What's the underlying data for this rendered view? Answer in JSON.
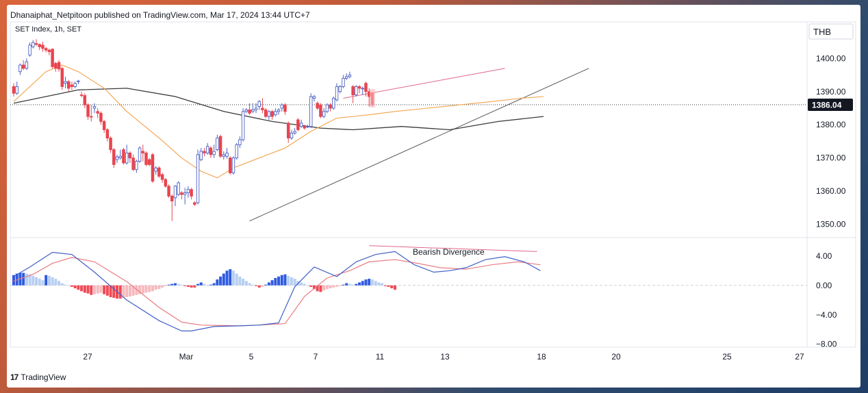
{
  "header": {
    "published": "Dhanaiphat_Netpitoon published on TradingView.com, Mar 17, 2024 13:44 UTC+7"
  },
  "footer": {
    "brand": "TradingView",
    "logo_icon": "tradingview-logo-icon"
  },
  "colors": {
    "up": "#4d62c4",
    "down": "#e8454f",
    "ema_fast": "#f2a24a",
    "ema_slow": "#3a3a3a",
    "macd": "#3f5fc7",
    "signal": "#e97b80",
    "hist_pos_strong": "#2f5be0",
    "hist_pos_weak": "#b7cff2",
    "hist_neg_strong": "#ef4a55",
    "hist_neg_weak": "#f6b9bd",
    "price_label_bg": "#131722"
  },
  "chart_data": [
    {
      "type": "candlestick",
      "title": "SET Index, 1h, SET",
      "currency": "THB",
      "last_price": "1386.04",
      "ylim": [
        1346,
        1411
      ],
      "y_ticks": [
        "1350.00",
        "1360.00",
        "1370.00",
        "1380.00",
        "1390.00",
        "1400.00"
      ],
      "x_ticks": [
        "27",
        "Mar",
        "5",
        "7",
        "11",
        "13",
        "18",
        "20",
        "25",
        "27"
      ],
      "candles": [
        [
          1391.5,
          1389.5,
          1392.5,
          1388.5
        ],
        [
          1389.5,
          1391.5,
          1393.0,
          1389.0
        ],
        [
          1396.0,
          1398.0,
          1398.5,
          1395.0
        ],
        [
          1398.0,
          1397.0,
          1399.5,
          1396.5
        ],
        [
          1397.0,
          1399.0,
          1400.0,
          1396.5
        ],
        [
          1401.0,
          1404.0,
          1404.8,
          1400.5
        ],
        [
          1403.5,
          1404.8,
          1405.5,
          1403.0
        ],
        [
          1404.5,
          1404.2,
          1405.8,
          1403.8
        ],
        [
          1404.2,
          1403.5,
          1404.5,
          1402.5
        ],
        [
          1404.0,
          1403.0,
          1405.0,
          1402.0
        ],
        [
          1403.0,
          1402.5,
          1403.5,
          1401.8
        ],
        [
          1402.5,
          1402.0,
          1403.0,
          1401.0
        ],
        [
          1402.8,
          1397.5,
          1403.0,
          1397.0
        ],
        [
          1398.5,
          1397.0,
          1399.0,
          1396.0
        ],
        [
          1398.8,
          1396.8,
          1399.5,
          1396.0
        ],
        [
          1397.0,
          1391.5,
          1397.5,
          1390.5
        ],
        [
          1392.5,
          1393.0,
          1394.5,
          1391.0
        ],
        [
          1393.0,
          1391.0,
          1393.5,
          1390.0
        ],
        [
          1392.0,
          1391.5,
          1393.0,
          1390.5
        ],
        [
          1391.5,
          1392.5,
          1393.0,
          1391.0
        ],
        [
          1393.0,
          1393.2,
          1393.5,
          1392.2
        ],
        [
          1389.0,
          1388.8,
          1390.0,
          1388.3
        ],
        [
          1388.8,
          1386.0,
          1389.5,
          1385.0
        ],
        [
          1386.0,
          1382.5,
          1386.5,
          1381.5
        ],
        [
          1382.5,
          1382.3,
          1386.0,
          1381.0
        ],
        [
          1385.0,
          1385.5,
          1386.5,
          1383.5
        ],
        [
          1384.0,
          1383.5,
          1385.0,
          1382.0
        ],
        [
          1383.5,
          1381.0,
          1384.0,
          1380.0
        ],
        [
          1381.0,
          1378.5,
          1381.5,
          1377.5
        ],
        [
          1378.5,
          1376.0,
          1379.0,
          1375.0
        ],
        [
          1376.0,
          1372.5,
          1376.5,
          1371.5
        ],
        [
          1372.5,
          1368.0,
          1373.0,
          1367.0
        ],
        [
          1369.5,
          1370.3,
          1371.0,
          1368.5
        ],
        [
          1370.0,
          1370.5,
          1372.5,
          1369.5
        ],
        [
          1372.5,
          1368.5,
          1373.0,
          1368.0
        ],
        [
          1368.5,
          1371.5,
          1374.0,
          1368.0
        ],
        [
          1371.5,
          1370.0,
          1372.0,
          1368.5
        ],
        [
          1370.0,
          1366.5,
          1371.0,
          1366.0
        ],
        [
          1366.5,
          1369.0,
          1369.5,
          1365.5
        ],
        [
          1369.0,
          1373.0,
          1373.5,
          1368.5
        ],
        [
          1372.0,
          1371.5,
          1374.0,
          1369.0
        ],
        [
          1371.5,
          1368.0,
          1372.0,
          1367.5
        ],
        [
          1369.5,
          1368.0,
          1370.0,
          1367.5
        ],
        [
          1371.0,
          1363.0,
          1371.5,
          1362.5
        ],
        [
          1366.0,
          1367.0,
          1367.5,
          1365.0
        ],
        [
          1367.0,
          1364.5,
          1367.5,
          1364.0
        ],
        [
          1365.0,
          1363.5,
          1365.5,
          1362.5
        ],
        [
          1363.5,
          1361.5,
          1364.0,
          1361.0
        ],
        [
          1361.5,
          1358.5,
          1362.0,
          1358.0
        ],
        [
          1358.5,
          1357.0,
          1359.0,
          1351.0
        ],
        [
          1358.0,
          1361.5,
          1361.8,
          1355.5
        ],
        [
          1359.0,
          1362.5,
          1363.0,
          1358.5
        ],
        [
          1359.5,
          1359.0,
          1360.0,
          1357.5
        ],
        [
          1359.0,
          1359.5,
          1361.0,
          1356.0
        ],
        [
          1359.5,
          1360.5,
          1361.5,
          1358.0
        ],
        [
          1360.5,
          1358.5,
          1361.0,
          1357.5
        ],
        [
          1356.5,
          1356.0,
          1357.0,
          1355.5
        ],
        [
          1356.5,
          1371.0,
          1372.5,
          1356.0
        ],
        [
          1369.5,
          1372.0,
          1373.0,
          1369.0
        ],
        [
          1372.0,
          1371.5,
          1373.0,
          1370.5
        ],
        [
          1371.5,
          1373.5,
          1374.5,
          1371.0
        ],
        [
          1373.0,
          1371.0,
          1373.5,
          1370.0
        ],
        [
          1371.0,
          1372.0,
          1374.0,
          1370.0
        ],
        [
          1372.5,
          1376.0,
          1377.0,
          1372.0
        ],
        [
          1376.5,
          1370.5,
          1377.0,
          1370.0
        ],
        [
          1370.5,
          1371.0,
          1372.0,
          1369.5
        ],
        [
          1370.5,
          1371.5,
          1373.0,
          1369.8
        ],
        [
          1370.0,
          1365.5,
          1370.5,
          1365.0
        ],
        [
          1365.5,
          1370.0,
          1370.5,
          1365.0
        ],
        [
          1370.0,
          1374.0,
          1374.5,
          1369.5
        ],
        [
          1374.0,
          1375.5,
          1376.5,
          1373.0
        ],
        [
          1375.5,
          1384.0,
          1385.0,
          1375.0
        ],
        [
          1384.0,
          1384.5,
          1385.0,
          1383.5
        ],
        [
          1384.5,
          1383.5,
          1386.5,
          1383.0
        ],
        [
          1384.0,
          1384.5,
          1386.5,
          1383.5
        ],
        [
          1384.5,
          1385.0,
          1386.5,
          1383.5
        ],
        [
          1385.5,
          1387.0,
          1387.5,
          1384.5
        ],
        [
          1385.0,
          1384.5,
          1388.0,
          1383.5
        ],
        [
          1384.5,
          1382.5,
          1385.0,
          1382.0
        ],
        [
          1382.5,
          1384.0,
          1384.5,
          1381.5
        ],
        [
          1384.0,
          1382.5,
          1384.5,
          1381.5
        ],
        [
          1383.0,
          1384.0,
          1385.0,
          1382.5
        ],
        [
          1384.0,
          1384.5,
          1385.0,
          1383.0
        ],
        [
          1385.0,
          1386.0,
          1386.5,
          1384.0
        ],
        [
          1386.0,
          1384.0,
          1386.5,
          1383.0
        ],
        [
          1380.5,
          1376.0,
          1381.0,
          1374.5
        ],
        [
          1376.0,
          1377.5,
          1378.5,
          1375.5
        ],
        [
          1377.5,
          1378.0,
          1379.0,
          1377.0
        ],
        [
          1381.5,
          1378.5,
          1382.0,
          1378.0
        ],
        [
          1379.5,
          1380.5,
          1381.5,
          1379.0
        ],
        [
          1379.5,
          1379.0,
          1380.0,
          1378.5
        ],
        [
          1379.5,
          1379.5,
          1380.0,
          1379.0
        ],
        [
          1379.5,
          1388.5,
          1389.5,
          1379.0
        ],
        [
          1388.0,
          1388.5,
          1389.0,
          1387.0
        ],
        [
          1386.5,
          1385.0,
          1387.0,
          1384.5
        ],
        [
          1386.0,
          1382.5,
          1386.5,
          1382.0
        ],
        [
          1382.5,
          1384.0,
          1385.0,
          1382.0
        ],
        [
          1384.0,
          1386.0,
          1386.5,
          1383.5
        ],
        [
          1386.0,
          1385.0,
          1386.5,
          1384.0
        ],
        [
          1385.0,
          1388.0,
          1388.5,
          1384.5
        ],
        [
          1387.5,
          1391.5,
          1392.5,
          1387.0
        ],
        [
          1390.0,
          1391.5,
          1392.0,
          1389.5
        ],
        [
          1391.5,
          1394.0,
          1395.0,
          1391.0
        ],
        [
          1394.0,
          1394.5,
          1395.5,
          1393.5
        ],
        [
          1394.5,
          1395.0,
          1396.0,
          1394.0
        ],
        [
          1391.5,
          1389.0,
          1392.0,
          1386.5
        ],
        [
          1389.0,
          1391.5,
          1392.0,
          1388.5
        ],
        [
          1391.5,
          1391.0,
          1392.0,
          1389.5
        ],
        [
          1391.0,
          1391.0,
          1391.5,
          1389.0
        ],
        [
          1392.5,
          1390.0,
          1393.0,
          1388.5
        ],
        [
          1390.0,
          1388.5,
          1391.0,
          1385.5
        ],
        [
          1389.5,
          1386.0,
          1390.0,
          1385.5
        ]
      ],
      "ema_fast": [
        [
          0,
          1387.0
        ],
        [
          10,
          1396.0
        ],
        [
          15,
          1398.0
        ],
        [
          20,
          1396.0
        ],
        [
          28,
          1391.0
        ],
        [
          35,
          1384.0
        ],
        [
          45,
          1376.0
        ],
        [
          52,
          1370.0
        ],
        [
          58,
          1366.0
        ],
        [
          63,
          1364.0
        ],
        [
          68,
          1367.0
        ],
        [
          76,
          1370.0
        ],
        [
          84,
          1373.0
        ],
        [
          92,
          1378.0
        ],
        [
          100,
          1382.0
        ],
        [
          110,
          1383.0
        ],
        [
          118,
          1384.0
        ],
        [
          128,
          1385.0
        ],
        [
          138,
          1386.0
        ],
        [
          148,
          1387.0
        ],
        [
          157,
          1388.0
        ],
        [
          164,
          1388.5
        ]
      ],
      "ema_slow": [
        [
          0,
          1386.5
        ],
        [
          20,
          1390.5
        ],
        [
          35,
          1391.0
        ],
        [
          50,
          1388.5
        ],
        [
          65,
          1384.0
        ],
        [
          80,
          1381.0
        ],
        [
          95,
          1379.0
        ],
        [
          105,
          1378.5
        ],
        [
          120,
          1379.5
        ],
        [
          135,
          1378.5
        ],
        [
          150,
          1381.0
        ],
        [
          164,
          1382.5
        ]
      ],
      "trendlines": [
        {
          "from": [
            73,
            1351.0
          ],
          "to": [
            178,
            1397.0
          ],
          "color": "#555555"
        },
        {
          "from": [
            102,
            1388.0
          ],
          "to": [
            152,
            1397.0
          ],
          "color": "#e06688"
        }
      ]
    },
    {
      "type": "macd",
      "ylim": [
        -8.4,
        6.5
      ],
      "y_ticks": [
        "4.00",
        "0.00",
        "−4.00",
        "−8.00"
      ],
      "annotation": "Bearish Divergence",
      "macd": [
        [
          0,
          1.2
        ],
        [
          5,
          2.5
        ],
        [
          12,
          4.5
        ],
        [
          18,
          4.2
        ],
        [
          25,
          1.8
        ],
        [
          35,
          -2.0
        ],
        [
          45,
          -4.8
        ],
        [
          52,
          -6.2
        ],
        [
          55,
          -6.2
        ],
        [
          62,
          -5.6
        ],
        [
          70,
          -5.5
        ],
        [
          76,
          -5.4
        ],
        [
          82,
          -5.1
        ],
        [
          87,
          -0.2
        ],
        [
          93,
          2.5
        ],
        [
          100,
          1.2
        ],
        [
          106,
          3.2
        ],
        [
          112,
          4.2
        ],
        [
          118,
          4.6
        ],
        [
          124,
          2.8
        ],
        [
          130,
          1.8
        ],
        [
          135,
          2.0
        ],
        [
          140,
          2.4
        ],
        [
          146,
          3.5
        ],
        [
          152,
          3.9
        ],
        [
          158,
          3.2
        ],
        [
          163,
          2.0
        ]
      ],
      "signal": [
        [
          0,
          0.6
        ],
        [
          6,
          1.5
        ],
        [
          12,
          3.0
        ],
        [
          18,
          3.8
        ],
        [
          25,
          3.2
        ],
        [
          35,
          0.5
        ],
        [
          45,
          -3.0
        ],
        [
          52,
          -5.0
        ],
        [
          58,
          -5.4
        ],
        [
          70,
          -5.5
        ],
        [
          76,
          -5.4
        ],
        [
          84,
          -5.2
        ],
        [
          90,
          -1.5
        ],
        [
          97,
          1.0
        ],
        [
          104,
          2.0
        ],
        [
          110,
          3.2
        ],
        [
          118,
          3.5
        ],
        [
          125,
          3.0
        ],
        [
          132,
          2.4
        ],
        [
          140,
          2.2
        ],
        [
          148,
          2.8
        ],
        [
          156,
          3.2
        ],
        [
          163,
          2.8
        ]
      ],
      "histogram": [
        1.4,
        1.6,
        1.7,
        1.7,
        1.6,
        1.5,
        1.3,
        1.1,
        0.9,
        0.7,
        1.4,
        1.3,
        1.1,
        0.9,
        0.6,
        0.3,
        0.1,
        0.0,
        -0.2,
        -0.4,
        -0.6,
        -0.8,
        -1.0,
        -1.1,
        -1.3,
        -1.2,
        -1.1,
        -1.0,
        -1.2,
        -1.4,
        -1.6,
        -1.7,
        -1.8,
        -1.8,
        -1.7,
        -1.6,
        -1.5,
        -1.4,
        -1.3,
        -1.2,
        -1.1,
        -1.0,
        -0.9,
        -0.8,
        -0.6,
        -0.5,
        -0.3,
        -0.1,
        0.1,
        0.2,
        0.3,
        0.2,
        0.1,
        -0.1,
        -0.2,
        -0.3,
        -0.3,
        0.2,
        0.4,
        0.2,
        0.0,
        0.1,
        0.3,
        0.8,
        1.2,
        1.6,
        2.0,
        2.2,
        2.0,
        1.6,
        1.2,
        0.9,
        0.6,
        0.3,
        0.1,
        -0.1,
        -0.3,
        -0.2,
        0.1,
        0.4,
        0.7,
        1.0,
        1.2,
        1.4,
        1.5,
        1.3,
        1.1,
        0.9,
        0.6,
        0.4,
        0.2,
        0.0,
        -0.2,
        -0.5,
        -0.8,
        -0.9,
        -0.7,
        -0.5,
        -0.4,
        -0.3,
        -0.2,
        -0.1,
        0.1,
        0.3,
        0.2,
        0.1,
        0.2,
        0.4,
        0.6,
        0.8,
        0.9,
        0.8,
        0.6,
        0.4,
        0.3,
        -0.1,
        -0.2,
        -0.4,
        -0.6
      ]
    }
  ]
}
